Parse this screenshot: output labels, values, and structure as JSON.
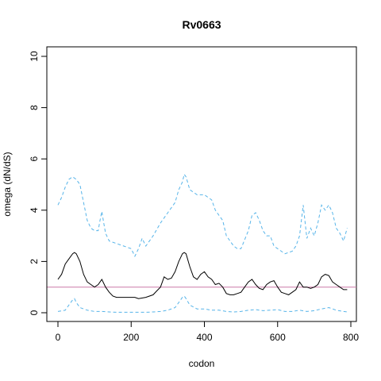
{
  "chart_data": {
    "type": "line",
    "title": "Rv0663",
    "xlabel": "codon",
    "ylabel": "omega (dN/dS)",
    "xlim": [
      0,
      800
    ],
    "ylim": [
      0,
      10
    ],
    "x_ticks": [
      0,
      200,
      400,
      600,
      800
    ],
    "y_ticks": [
      0,
      2,
      4,
      6,
      8,
      10
    ],
    "grid": false,
    "reference_line": {
      "y": 1,
      "color": "#cc79a7"
    },
    "series": [
      {
        "role": "estimate",
        "color": "#000000",
        "dash": "solid",
        "x": [
          0,
          10,
          20,
          30,
          40,
          45,
          50,
          60,
          70,
          80,
          90,
          100,
          110,
          120,
          130,
          140,
          150,
          160,
          170,
          180,
          200,
          210,
          220,
          240,
          260,
          270,
          280,
          290,
          300,
          310,
          320,
          330,
          340,
          345,
          350,
          360,
          370,
          380,
          390,
          400,
          410,
          420,
          430,
          440,
          450,
          460,
          470,
          480,
          490,
          500,
          510,
          520,
          530,
          540,
          550,
          560,
          570,
          580,
          590,
          600,
          610,
          620,
          630,
          640,
          650,
          660,
          670,
          680,
          690,
          700,
          710,
          720,
          730,
          740,
          750,
          760,
          770,
          780,
          790
        ],
        "y": [
          1.3,
          1.5,
          1.9,
          2.1,
          2.3,
          2.35,
          2.3,
          2.0,
          1.5,
          1.2,
          1.1,
          1.0,
          1.1,
          1.3,
          1.0,
          0.8,
          0.65,
          0.6,
          0.6,
          0.6,
          0.6,
          0.6,
          0.55,
          0.6,
          0.7,
          0.85,
          1.0,
          1.4,
          1.3,
          1.35,
          1.6,
          2.0,
          2.3,
          2.35,
          2.3,
          1.8,
          1.4,
          1.3,
          1.5,
          1.6,
          1.4,
          1.3,
          1.1,
          1.15,
          1.0,
          0.75,
          0.7,
          0.7,
          0.75,
          0.8,
          1.0,
          1.2,
          1.3,
          1.1,
          0.95,
          0.9,
          1.1,
          1.2,
          1.25,
          1.0,
          0.8,
          0.75,
          0.7,
          0.8,
          0.9,
          1.2,
          1.0,
          1.0,
          0.95,
          1.0,
          1.1,
          1.4,
          1.5,
          1.45,
          1.2,
          1.1,
          1.0,
          0.9,
          0.9
        ]
      },
      {
        "role": "upper",
        "color": "#56b4e9",
        "dash": "dashed",
        "x": [
          0,
          10,
          20,
          30,
          40,
          50,
          60,
          70,
          80,
          90,
          100,
          110,
          115,
          120,
          125,
          130,
          140,
          160,
          180,
          200,
          210,
          220,
          230,
          240,
          260,
          280,
          300,
          320,
          330,
          340,
          345,
          350,
          360,
          380,
          400,
          420,
          430,
          440,
          450,
          460,
          480,
          490,
          500,
          520,
          530,
          540,
          550,
          560,
          570,
          580,
          590,
          600,
          620,
          640,
          650,
          660,
          670,
          680,
          690,
          700,
          710,
          720,
          730,
          740,
          750,
          760,
          770,
          780,
          790
        ],
        "y": [
          4.2,
          4.5,
          4.9,
          5.2,
          5.3,
          5.2,
          5.0,
          4.3,
          3.6,
          3.3,
          3.2,
          3.2,
          3.6,
          3.95,
          3.5,
          3.1,
          2.8,
          2.7,
          2.6,
          2.5,
          2.2,
          2.5,
          2.9,
          2.6,
          3.0,
          3.5,
          3.9,
          4.3,
          4.8,
          5.1,
          5.4,
          5.3,
          4.8,
          4.6,
          4.6,
          4.4,
          4.0,
          3.8,
          3.6,
          3.0,
          2.6,
          2.5,
          2.5,
          3.2,
          3.8,
          3.9,
          3.6,
          3.2,
          3.0,
          3.0,
          2.6,
          2.5,
          2.3,
          2.4,
          2.6,
          3.0,
          4.2,
          2.9,
          3.3,
          3.0,
          3.5,
          4.2,
          4.0,
          4.2,
          3.9,
          3.3,
          3.1,
          2.8,
          3.3
        ]
      },
      {
        "role": "lower",
        "color": "#56b4e9",
        "dash": "dashed",
        "x": [
          0,
          20,
          30,
          40,
          45,
          50,
          60,
          80,
          100,
          120,
          140,
          160,
          180,
          200,
          220,
          240,
          260,
          280,
          300,
          320,
          330,
          340,
          345,
          350,
          360,
          380,
          400,
          420,
          440,
          460,
          480,
          500,
          520,
          540,
          560,
          580,
          600,
          620,
          640,
          660,
          680,
          700,
          720,
          740,
          760,
          780,
          790
        ],
        "y": [
          0.05,
          0.1,
          0.3,
          0.5,
          0.55,
          0.4,
          0.2,
          0.1,
          0.05,
          0.05,
          0.03,
          0.02,
          0.02,
          0.02,
          0.02,
          0.02,
          0.03,
          0.05,
          0.1,
          0.2,
          0.4,
          0.6,
          0.65,
          0.55,
          0.3,
          0.15,
          0.15,
          0.1,
          0.1,
          0.05,
          0.03,
          0.05,
          0.1,
          0.12,
          0.08,
          0.1,
          0.12,
          0.05,
          0.05,
          0.1,
          0.05,
          0.08,
          0.15,
          0.2,
          0.1,
          0.05,
          0.03
        ]
      }
    ]
  }
}
